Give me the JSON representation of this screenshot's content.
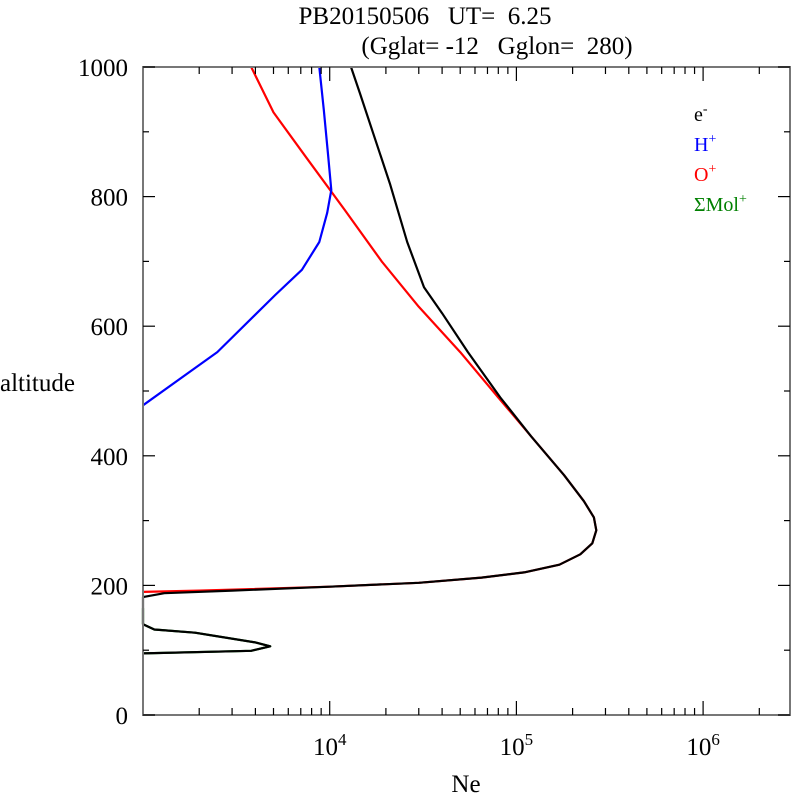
{
  "chart_data": {
    "type": "line",
    "title_line1": "PB20150506   UT=  6.25",
    "title_line2": "(Gglat= -12   Gglon=  280)",
    "xlabel": "Ne",
    "ylabel": "altitude",
    "xscale": "log",
    "xlim": [
      1000,
      3000000
    ],
    "ylim": [
      0,
      1000
    ],
    "yticks": [
      "0",
      "200",
      "400",
      "600",
      "800",
      "1000"
    ],
    "ytick_values": [
      0,
      200,
      400,
      600,
      800,
      1000
    ],
    "xticks": [
      {
        "base": "10",
        "exp": "4",
        "value": 10000
      },
      {
        "base": "10",
        "exp": "5",
        "value": 100000
      },
      {
        "base": "10",
        "exp": "6",
        "value": 1000000
      }
    ],
    "legend_placement": "top-right",
    "legend": [
      {
        "base": "e",
        "sup": "-",
        "color": "#000000"
      },
      {
        "base": "H",
        "sup": "+",
        "color": "#0000ff"
      },
      {
        "base": "O",
        "sup": "+",
        "color": "#ff0000"
      },
      {
        "base": "ΣMol",
        "sup": "+",
        "color": "#008000"
      }
    ],
    "series": [
      {
        "name": "ΣMol+",
        "color": "#008000",
        "points": [
          [
            1000,
            95
          ],
          [
            3800,
            99
          ],
          [
            4800,
            106
          ],
          [
            4000,
            112
          ],
          [
            1900,
            127
          ],
          [
            1150,
            132
          ],
          [
            1000,
            140
          ],
          [
            1000,
            165
          ]
        ]
      },
      {
        "name": "O+",
        "color": "#ff0000",
        "points": [
          [
            1000,
            190
          ],
          [
            2000,
            192
          ],
          [
            10000,
            198
          ],
          [
            30000,
            204
          ],
          [
            65000,
            212
          ],
          [
            110000,
            220
          ],
          [
            170000,
            232
          ],
          [
            220000,
            248
          ],
          [
            255000,
            265
          ],
          [
            268000,
            285
          ],
          [
            260000,
            305
          ],
          [
            230000,
            330
          ],
          [
            180000,
            370
          ],
          [
            120000,
            430
          ],
          [
            80000,
            490
          ],
          [
            50000,
            560
          ],
          [
            30000,
            630
          ],
          [
            19000,
            700
          ],
          [
            12000,
            780
          ],
          [
            7500,
            860
          ],
          [
            5000,
            930
          ],
          [
            3800,
            1000
          ]
        ]
      },
      {
        "name": "H+",
        "color": "#0000ff",
        "points": [
          [
            1000,
            478
          ],
          [
            2500,
            560
          ],
          [
            5100,
            648
          ],
          [
            7100,
            687
          ],
          [
            8800,
            730
          ],
          [
            9700,
            775
          ],
          [
            10200,
            810
          ],
          [
            9800,
            864
          ],
          [
            9300,
            934
          ],
          [
            8800,
            1000
          ]
        ]
      },
      {
        "name": "e-",
        "color": "#000000",
        "points": [
          [
            1000,
            95
          ],
          [
            3800,
            99
          ],
          [
            4800,
            106
          ],
          [
            4000,
            112
          ],
          [
            1900,
            127
          ],
          [
            1150,
            132
          ],
          [
            1000,
            140
          ],
          [
            1000,
            165
          ],
          [
            1000,
            182
          ],
          [
            1300,
            188
          ],
          [
            3000,
            192
          ],
          [
            10000,
            198
          ],
          [
            30000,
            204
          ],
          [
            65000,
            212
          ],
          [
            110000,
            220
          ],
          [
            170000,
            232
          ],
          [
            220000,
            248
          ],
          [
            255000,
            265
          ],
          [
            268000,
            285
          ],
          [
            260000,
            305
          ],
          [
            230000,
            330
          ],
          [
            180000,
            370
          ],
          [
            120000,
            430
          ],
          [
            82000,
            490
          ],
          [
            55000,
            560
          ],
          [
            40000,
            620
          ],
          [
            32000,
            660
          ],
          [
            26000,
            730
          ],
          [
            21000,
            820
          ],
          [
            17000,
            900
          ],
          [
            14500,
            960
          ],
          [
            13000,
            1000
          ]
        ]
      }
    ]
  }
}
